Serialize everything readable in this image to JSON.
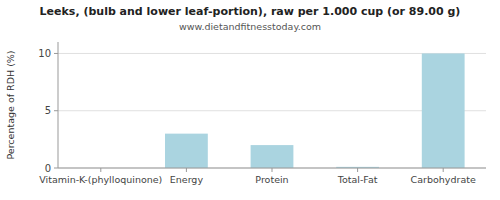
{
  "chart_data": {
    "type": "bar",
    "title": "Leeks, (bulb and lower leaf-portion), raw per 1.000 cup (or 89.00 g)",
    "subtitle": "www.dietandfitnesstoday.com",
    "categories": [
      "Vitamin-K-(phylloquinone)",
      "Energy",
      "Protein",
      "Total-Fat",
      "Carbohydrate"
    ],
    "values": [
      0,
      3.0,
      2.0,
      0.1,
      10.0
    ],
    "color": "#aad4e0",
    "ylabel": "Percentage of RDH (%)",
    "ylim": [
      0,
      11
    ],
    "yticks": [
      0,
      5,
      10
    ],
    "grid": true
  }
}
